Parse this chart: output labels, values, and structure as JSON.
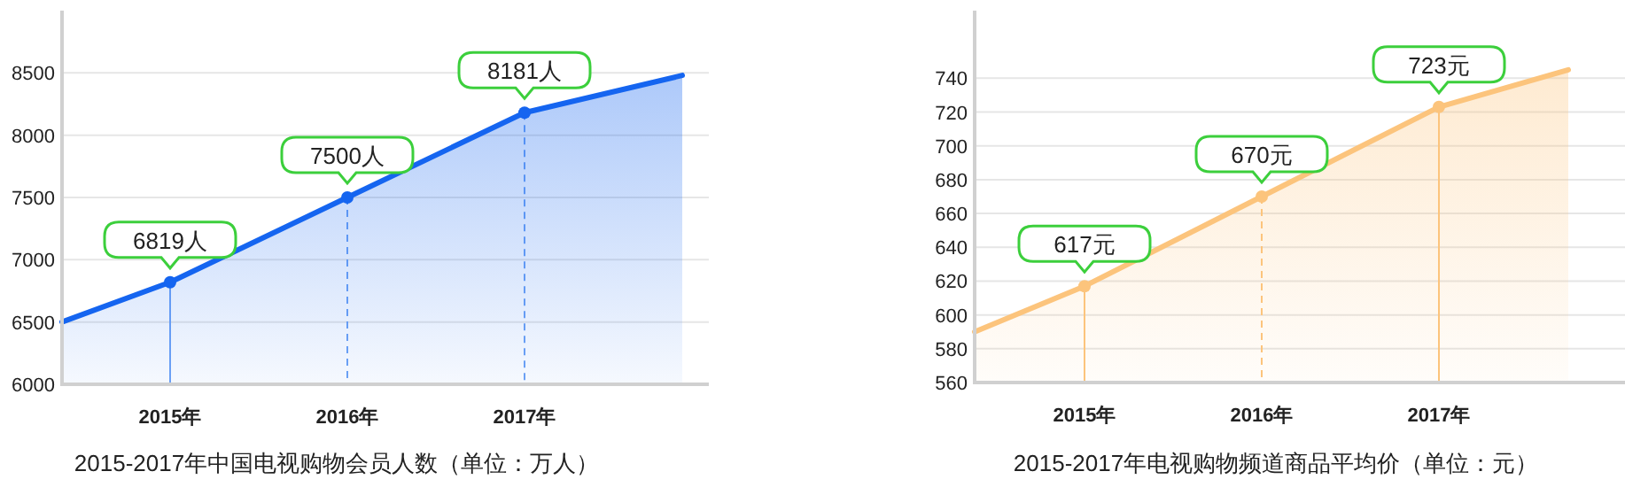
{
  "chart_data": [
    {
      "type": "area",
      "title": "2015-2017年中国电视购物会员人数（单位：万人）",
      "x": [
        2014.39,
        2015,
        2016,
        2017,
        2017.89
      ],
      "xlim": [
        2014.39,
        2018.04
      ],
      "xticks": [
        {
          "value": 2015,
          "label": "2015年"
        },
        {
          "value": 2016,
          "label": "2016年"
        },
        {
          "value": 2017,
          "label": "2017年"
        }
      ],
      "ylim": [
        6000,
        9000
      ],
      "yticks": [
        6000,
        6500,
        7000,
        7500,
        8000,
        8500
      ],
      "grid": "y",
      "marker": "circle",
      "series": [
        {
          "color": "#1565f0",
          "values": [
            6500,
            6819,
            7500,
            8181,
            8480
          ],
          "value_labels": [
            null,
            "6819人",
            "7500人",
            "8181人",
            null
          ]
        }
      ],
      "ref_lines": [
        {
          "axis": "x",
          "value": 2015,
          "color": "#6fa3f5",
          "line_style": "solid"
        },
        {
          "axis": "x",
          "value": 2016,
          "color": "#6fa3f5",
          "line_style": "dashed"
        },
        {
          "axis": "x",
          "value": 2017,
          "color": "#6fa3f5",
          "line_style": "dashed"
        }
      ]
    },
    {
      "type": "area",
      "title": "2015-2017年电视购物频道商品平均价（单位：元）",
      "x": [
        2014.38,
        2015,
        2016,
        2017,
        2017.73
      ],
      "xlim": [
        2014.38,
        2018.05
      ],
      "xticks": [
        {
          "value": 2015,
          "label": "2015年"
        },
        {
          "value": 2016,
          "label": "2016年"
        },
        {
          "value": 2017,
          "label": "2017年"
        }
      ],
      "ylim": [
        560,
        780
      ],
      "yticks": [
        560,
        580,
        600,
        620,
        640,
        660,
        680,
        700,
        720,
        740
      ],
      "grid": "y",
      "marker": "circle",
      "series": [
        {
          "color": "#fcc47c",
          "values": [
            590,
            617,
            670,
            723,
            745
          ],
          "value_labels": [
            null,
            "617元",
            "670元",
            "723元",
            null
          ]
        }
      ],
      "ref_lines": [
        {
          "axis": "x",
          "value": 2015,
          "color": "#fcc47c",
          "line_style": "solid"
        },
        {
          "axis": "x",
          "value": 2016,
          "color": "#fcc47c",
          "line_style": "dashed"
        },
        {
          "axis": "x",
          "value": 2017,
          "color": "#fcc47c",
          "line_style": "solid"
        }
      ]
    }
  ]
}
